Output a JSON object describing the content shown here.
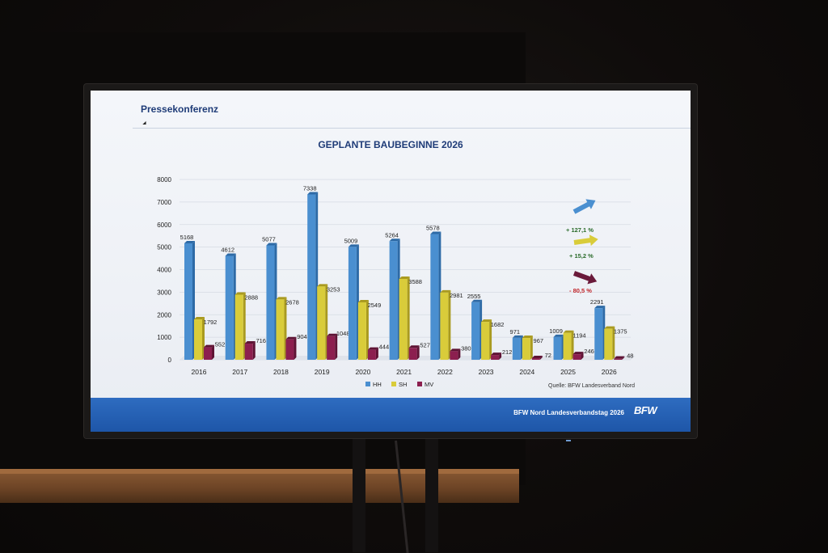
{
  "slide": {
    "header": "Pressekonferenz",
    "footer": "BFW Nord Landesverbandstag 2026",
    "logo_text": "BFW",
    "source": "Quelle: BFW Landesverband Nord"
  },
  "colors": {
    "hh": "#4a8fd0",
    "sh": "#d9cc3a",
    "mv": "#8c1f4f",
    "trend_hh_label": "#2a6b2a",
    "trend_sh_label": "#2a6b2a",
    "trend_mv_label": "#c0252a"
  },
  "trends": [
    {
      "series": "HH",
      "label": "+ 127,1 %",
      "arrow_color": "#4a8fd0",
      "direction": "up"
    },
    {
      "series": "SH",
      "label": "+ 15,2 %",
      "arrow_color": "#d9cc3a",
      "direction": "up"
    },
    {
      "series": "MV",
      "label": "- 80,5 %",
      "arrow_color": "#6a1a3a",
      "direction": "down"
    }
  ],
  "chart_data": {
    "type": "bar",
    "title": "GEPLANTE BAUBEGINNE 2026",
    "categories": [
      "2016",
      "2017",
      "2018",
      "2019",
      "2020",
      "2021",
      "2022",
      "2023",
      "2024",
      "2025",
      "2026"
    ],
    "series": [
      {
        "name": "HH",
        "values": [
          5168,
          4612,
          5077,
          7338,
          5009,
          5264,
          5578,
          2555,
          971,
          1009,
          2291
        ]
      },
      {
        "name": "SH",
        "values": [
          1792,
          2888,
          2678,
          3253,
          2549,
          3588,
          2981,
          1682,
          967,
          1194,
          1375
        ]
      },
      {
        "name": "MV",
        "values": [
          552,
          716,
          904,
          1048,
          444,
          527,
          380,
          212,
          72,
          246,
          48
        ]
      }
    ],
    "yticks": [
      0,
      1000,
      2000,
      3000,
      4000,
      5000,
      6000,
      7000,
      8000
    ],
    "ylim": [
      0,
      8000
    ],
    "grid": true,
    "legend": "bottom"
  }
}
